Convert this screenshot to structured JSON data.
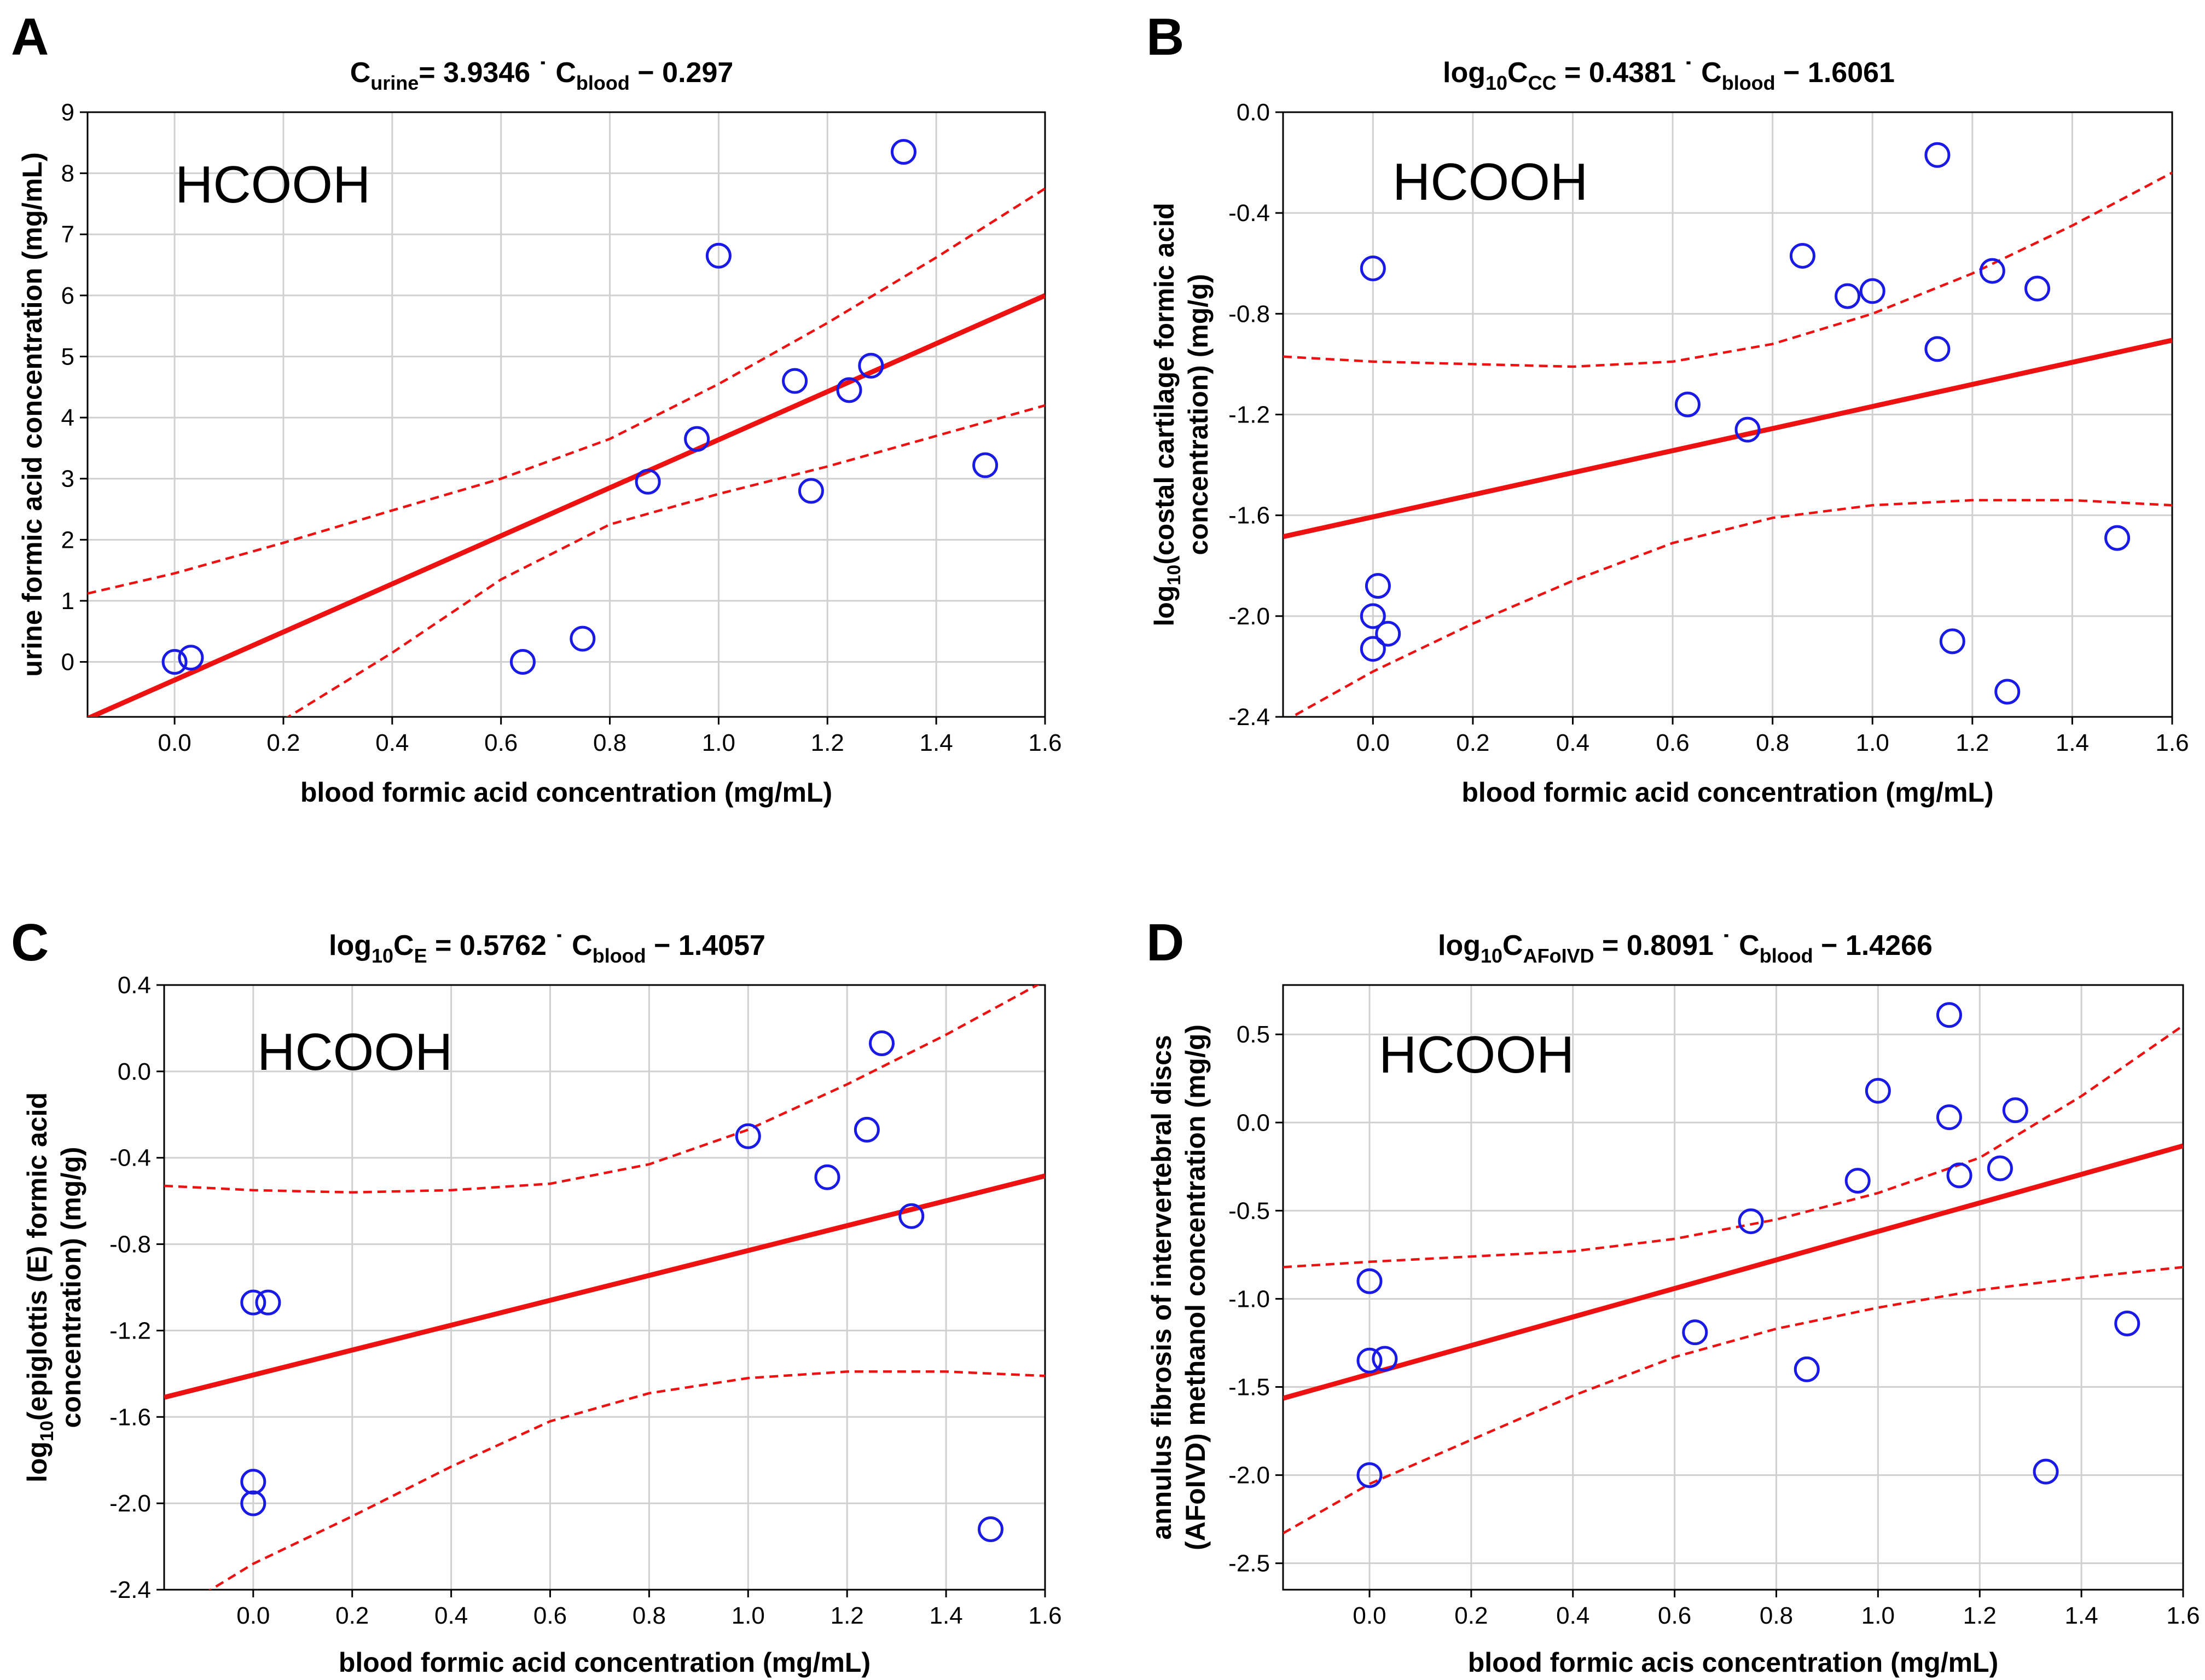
{
  "chart_data": [
    {
      "type": "scatter",
      "panel": "A",
      "compound": "HCOOH",
      "equation": {
        "lhs_main": "C",
        "lhs_sub": "urine",
        "slope": "= 3.9346 ˙ ",
        "x_main": "C",
        "x_sub": "blood",
        "intercept": " − 0.297"
      },
      "xlabel": "blood formic acid concentration (mg/mL)",
      "ylabel": {
        "pre": "",
        "sub": "",
        "lines": [
          "urine formic acid concentration (mg/mL)"
        ]
      },
      "xlim": [
        -0.16,
        1.6
      ],
      "ylim": [
        -0.9,
        9
      ],
      "xticks": [
        0.0,
        0.2,
        0.4,
        0.6,
        0.8,
        1.0,
        1.2,
        1.4,
        1.6
      ],
      "xtick_labels": [
        "0.0",
        "0.2",
        "0.4",
        "0.6",
        "0.8",
        "1.0",
        "1.2",
        "1.4",
        "1.6"
      ],
      "yticks": [
        0,
        1,
        2,
        3,
        4,
        5,
        6,
        7,
        8,
        9
      ],
      "ytick_labels": [
        "0",
        "1",
        "2",
        "3",
        "4",
        "5",
        "6",
        "7",
        "8",
        "9"
      ],
      "fit": {
        "slope": 3.9346,
        "intercept": -0.297
      },
      "ci_upper": [
        [
          -0.16,
          1.12
        ],
        [
          0.0,
          1.45
        ],
        [
          0.2,
          1.95
        ],
        [
          0.4,
          2.48
        ],
        [
          0.6,
          3.0
        ],
        [
          0.8,
          3.65
        ],
        [
          1.0,
          4.55
        ],
        [
          1.2,
          5.55
        ],
        [
          1.4,
          6.62
        ],
        [
          1.6,
          7.75
        ]
      ],
      "ci_lower": [
        [
          0.2,
          -0.95
        ],
        [
          0.4,
          0.15
        ],
        [
          0.6,
          1.35
        ],
        [
          0.8,
          2.25
        ],
        [
          1.0,
          2.75
        ],
        [
          1.2,
          3.2
        ],
        [
          1.4,
          3.7
        ],
        [
          1.6,
          4.2
        ]
      ],
      "points": [
        [
          0.0,
          0.0
        ],
        [
          0.03,
          0.07
        ],
        [
          0.64,
          0.0
        ],
        [
          0.75,
          0.38
        ],
        [
          0.87,
          2.95
        ],
        [
          0.96,
          3.65
        ],
        [
          1.0,
          6.65
        ],
        [
          1.14,
          4.6
        ],
        [
          1.17,
          2.8
        ],
        [
          1.24,
          4.45
        ],
        [
          1.28,
          4.85
        ],
        [
          1.34,
          8.35
        ],
        [
          1.49,
          3.22
        ]
      ]
    },
    {
      "type": "scatter",
      "panel": "B",
      "compound": "HCOOH",
      "equation": {
        "lhs_main": "log",
        "lhs_sub": "10",
        "lhs_main2": "C",
        "lhs_sub2": "CC",
        "slope": " = 0.4381 ˙ ",
        "x_main": "C",
        "x_sub": "blood",
        "intercept": " − 1.6061"
      },
      "xlabel": "blood formic acid concentration (mg/mL)",
      "ylabel": {
        "pre": "log",
        "sub": "10",
        "lines": [
          "(costal cartilage formic acid",
          "concentration) (mg/g)"
        ]
      },
      "xlim": [
        -0.18,
        1.6
      ],
      "ylim": [
        -2.4,
        0.0
      ],
      "xticks": [
        0.0,
        0.2,
        0.4,
        0.6,
        0.8,
        1.0,
        1.2,
        1.4,
        1.6
      ],
      "xtick_labels": [
        "0.0",
        "0.2",
        "0.4",
        "0.6",
        "0.8",
        "1.0",
        "1.2",
        "1.4",
        "1.6"
      ],
      "yticks": [
        -2.4,
        -2.0,
        -1.6,
        -1.2,
        -0.8,
        -0.4,
        0.0
      ],
      "ytick_labels": [
        "-2.4",
        "-2.0",
        "-1.6",
        "-1.2",
        "-0.8",
        "-0.4",
        "0.0"
      ],
      "fit": {
        "slope": 0.4381,
        "intercept": -1.6061
      },
      "ci_upper": [
        [
          -0.18,
          -0.97
        ],
        [
          0.0,
          -0.99
        ],
        [
          0.2,
          -1.0
        ],
        [
          0.4,
          -1.01
        ],
        [
          0.6,
          -0.99
        ],
        [
          0.8,
          -0.92
        ],
        [
          1.0,
          -0.8
        ],
        [
          1.2,
          -0.64
        ],
        [
          1.4,
          -0.45
        ],
        [
          1.6,
          -0.24
        ]
      ],
      "ci_lower": [
        [
          -0.18,
          -2.42
        ],
        [
          0.0,
          -2.22
        ],
        [
          0.2,
          -2.03
        ],
        [
          0.4,
          -1.86
        ],
        [
          0.6,
          -1.71
        ],
        [
          0.8,
          -1.61
        ],
        [
          1.0,
          -1.56
        ],
        [
          1.2,
          -1.54
        ],
        [
          1.4,
          -1.54
        ],
        [
          1.6,
          -1.56
        ]
      ],
      "points": [
        [
          0.0,
          -0.62
        ],
        [
          0.0,
          -2.13
        ],
        [
          0.0,
          -2.0
        ],
        [
          0.01,
          -1.88
        ],
        [
          0.03,
          -2.07
        ],
        [
          0.63,
          -1.16
        ],
        [
          0.75,
          -1.26
        ],
        [
          0.86,
          -0.57
        ],
        [
          0.95,
          -0.73
        ],
        [
          1.0,
          -0.71
        ],
        [
          1.13,
          -0.17
        ],
        [
          1.13,
          -0.94
        ],
        [
          1.16,
          -2.1
        ],
        [
          1.24,
          -0.63
        ],
        [
          1.27,
          -2.3
        ],
        [
          1.33,
          -0.7
        ],
        [
          1.49,
          -1.69
        ]
      ]
    },
    {
      "type": "scatter",
      "panel": "C",
      "compound": "HCOOH",
      "equation": {
        "lhs_main": "log",
        "lhs_sub": "10",
        "lhs_main2": "C",
        "lhs_sub2": "E",
        "slope": " = 0.5762 ˙ ",
        "x_main": "C",
        "x_sub": "blood",
        "intercept": " − 1.4057"
      },
      "xlabel": "blood formic acid concentration (mg/mL)",
      "ylabel": {
        "pre": "log",
        "sub": "10",
        "lines": [
          "(epiglottis (E) formic acid",
          "concentration) (mg/g)"
        ]
      },
      "xlim": [
        -0.18,
        1.6
      ],
      "ylim": [
        -2.4,
        0.4
      ],
      "xticks": [
        0.0,
        0.2,
        0.4,
        0.6,
        0.8,
        1.0,
        1.2,
        1.4,
        1.6
      ],
      "xtick_labels": [
        "0.0",
        "0.2",
        "0.4",
        "0.6",
        "0.8",
        "1.0",
        "1.2",
        "1.4",
        "1.6"
      ],
      "yticks": [
        -2.4,
        -2.0,
        -1.6,
        -1.2,
        -0.8,
        -0.4,
        0.0,
        0.4
      ],
      "ytick_labels": [
        "-2.4",
        "-2.0",
        "-1.6",
        "-1.2",
        "-0.8",
        "-0.4",
        "0.0",
        "0.4"
      ],
      "fit": {
        "slope": 0.5762,
        "intercept": -1.4057
      },
      "ci_upper": [
        [
          -0.18,
          -0.53
        ],
        [
          0.0,
          -0.55
        ],
        [
          0.2,
          -0.56
        ],
        [
          0.4,
          -0.55
        ],
        [
          0.6,
          -0.52
        ],
        [
          0.8,
          -0.43
        ],
        [
          1.0,
          -0.27
        ],
        [
          1.2,
          -0.06
        ],
        [
          1.4,
          0.17
        ],
        [
          1.6,
          0.42
        ]
      ],
      "ci_lower": [
        [
          -0.1,
          -2.42
        ],
        [
          0.0,
          -2.28
        ],
        [
          0.2,
          -2.06
        ],
        [
          0.4,
          -1.83
        ],
        [
          0.6,
          -1.62
        ],
        [
          0.8,
          -1.49
        ],
        [
          1.0,
          -1.42
        ],
        [
          1.2,
          -1.39
        ],
        [
          1.4,
          -1.39
        ],
        [
          1.6,
          -1.41
        ]
      ],
      "points": [
        [
          0.0,
          -1.07
        ],
        [
          0.03,
          -1.07
        ],
        [
          0.0,
          -1.9
        ],
        [
          0.0,
          -2.0
        ],
        [
          1.0,
          -0.3
        ],
        [
          1.16,
          -0.49
        ],
        [
          1.24,
          -0.27
        ],
        [
          1.27,
          0.13
        ],
        [
          1.33,
          -0.67
        ],
        [
          1.49,
          -2.12
        ]
      ]
    },
    {
      "type": "scatter",
      "panel": "D",
      "compound": "HCOOH",
      "equation": {
        "lhs_main": "log",
        "lhs_sub": "10",
        "lhs_main2": "C",
        "lhs_sub2": "AFoIVD",
        "slope": " = 0.8091 ˙ ",
        "x_main": "C",
        "x_sub": "blood",
        "intercept": " − 1.4266"
      },
      "xlabel": "blood formic acis concentration (mg/mL)",
      "ylabel": {
        "pre": "",
        "sub": "",
        "lines": [
          "annulus fibrosis of intervertebral discs",
          "(AFoIVD) methanol concentration (mg/g)"
        ]
      },
      "xlim": [
        -0.17,
        1.6
      ],
      "ylim": [
        -2.65,
        0.78
      ],
      "xticks": [
        0.0,
        0.2,
        0.4,
        0.6,
        0.8,
        1.0,
        1.2,
        1.4,
        1.6
      ],
      "xtick_labels": [
        "0.0",
        "0.2",
        "0.4",
        "0.6",
        "0.8",
        "1.0",
        "1.2",
        "1.4",
        "1.6"
      ],
      "yticks": [
        -2.5,
        -2.0,
        -1.5,
        -1.0,
        -0.5,
        0.0,
        0.5
      ],
      "ytick_labels": [
        "-2.5",
        "-2.0",
        "-1.5",
        "-1.0",
        "-0.5",
        "0.0",
        "0.5"
      ],
      "fit": {
        "slope": 0.8091,
        "intercept": -1.4266
      },
      "ci_upper": [
        [
          -0.17,
          -0.82
        ],
        [
          0.0,
          -0.79
        ],
        [
          0.2,
          -0.76
        ],
        [
          0.4,
          -0.73
        ],
        [
          0.6,
          -0.66
        ],
        [
          0.8,
          -0.55
        ],
        [
          1.0,
          -0.4
        ],
        [
          1.2,
          -0.2
        ],
        [
          1.4,
          0.15
        ],
        [
          1.6,
          0.55
        ]
      ],
      "ci_lower": [
        [
          -0.17,
          -2.33
        ],
        [
          0.0,
          -2.05
        ],
        [
          0.2,
          -1.8
        ],
        [
          0.4,
          -1.55
        ],
        [
          0.6,
          -1.33
        ],
        [
          0.8,
          -1.17
        ],
        [
          1.0,
          -1.05
        ],
        [
          1.2,
          -0.95
        ],
        [
          1.4,
          -0.88
        ],
        [
          1.6,
          -0.82
        ]
      ],
      "points": [
        [
          0.0,
          -0.9
        ],
        [
          0.0,
          -1.35
        ],
        [
          0.03,
          -1.34
        ],
        [
          0.0,
          -2.0
        ],
        [
          0.64,
          -1.19
        ],
        [
          0.75,
          -0.56
        ],
        [
          0.86,
          -1.4
        ],
        [
          0.96,
          -0.33
        ],
        [
          1.0,
          0.18
        ],
        [
          1.14,
          0.03
        ],
        [
          1.14,
          0.61
        ],
        [
          1.16,
          -0.3
        ],
        [
          1.24,
          -0.26
        ],
        [
          1.27,
          0.07
        ],
        [
          1.33,
          -1.98
        ],
        [
          1.49,
          -1.14
        ]
      ]
    }
  ]
}
